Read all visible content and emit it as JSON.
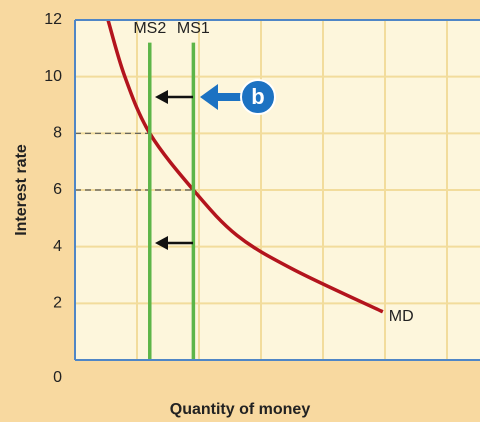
{
  "chart_data": {
    "type": "line",
    "xlabel": "Quantity of money",
    "ylabel": "Interest rate",
    "ylim": [
      0,
      12
    ],
    "yticks": [
      0,
      2,
      4,
      6,
      8,
      10,
      12
    ],
    "xlim": [
      0,
      6.5
    ],
    "grid": true,
    "annotation": "b",
    "series": [
      {
        "name": "MD",
        "color": "#b3141d",
        "x": [
          0.53,
          0.8,
          1.2,
          1.9,
          2.6,
          3.5,
          4.94
        ],
        "values": [
          12,
          10,
          8,
          6,
          4.4,
          3.2,
          1.7
        ]
      },
      {
        "name": "MS2",
        "color": "#5db548",
        "x": [
          1.2,
          1.2
        ],
        "values": [
          0,
          11.2
        ]
      },
      {
        "name": "MS1",
        "color": "#5db548",
        "x": [
          1.9,
          1.9
        ],
        "values": [
          0,
          11.2
        ]
      }
    ]
  }
}
